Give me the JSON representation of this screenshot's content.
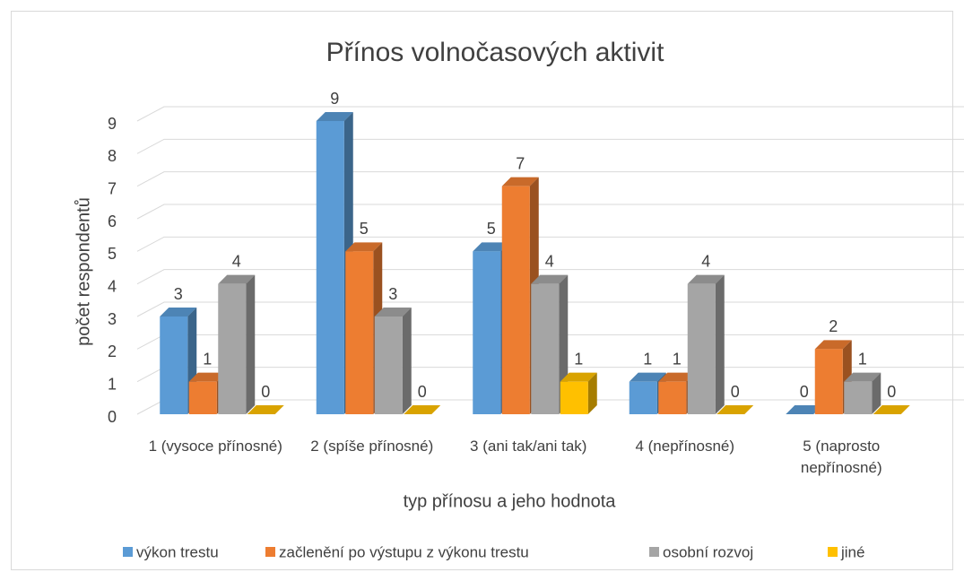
{
  "chart_data": {
    "type": "bar3d",
    "title": "Přínos volnočasových aktivit",
    "x_label": "typ přínosu a jeho hodnota",
    "y_label": "počet respondentů",
    "categories": [
      "1 (vysoce přínosné)",
      "2 (spíše přínosné)",
      "3 (ani tak/ani tak)",
      "4 (nepřínosné)",
      "5 (naprosto nepřínosné)"
    ],
    "series": [
      {
        "name": "výkon trestu",
        "color": "#5b9bd5",
        "values": [
          3,
          9,
          5,
          1,
          0
        ]
      },
      {
        "name": "začlenění po výstupu z výkonu trestu",
        "color": "#ed7d31",
        "values": [
          1,
          5,
          7,
          1,
          2
        ]
      },
      {
        "name": "osobní rozvoj",
        "color": "#a5a5a5",
        "values": [
          4,
          3,
          4,
          4,
          1
        ]
      },
      {
        "name": "jiné",
        "color": "#ffc000",
        "values": [
          0,
          0,
          1,
          0,
          0
        ]
      }
    ],
    "ylim": [
      0,
      9
    ],
    "yticks": [
      0,
      1,
      2,
      3,
      4,
      5,
      6,
      7,
      8,
      9
    ],
    "grid": true,
    "legend": "bottom"
  }
}
